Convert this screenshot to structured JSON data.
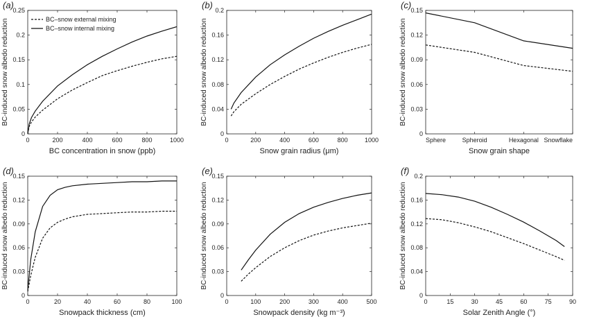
{
  "legend": {
    "external_label": "BC–snow external mixing",
    "internal_label": "BC–snow internal mixing",
    "placement": "top-left of panel (a)"
  },
  "chart_data": [
    {
      "id": "a",
      "panel_label": "(a)",
      "type": "line",
      "xlabel": "BC concentration in snow (ppb)",
      "ylabel": "BC-induced snow albedo reduction",
      "xlim": [
        0,
        1000
      ],
      "ylim": [
        0,
        0.25
      ],
      "xticks": [
        0,
        200,
        400,
        600,
        800,
        1000
      ],
      "xtick_labels": [
        "0",
        "200",
        "400",
        "600",
        "800",
        "1000"
      ],
      "yticks": [
        0,
        0.05,
        0.1,
        0.15,
        0.2,
        0.25
      ],
      "ytick_labels": [
        "0",
        "0.05",
        "0.1",
        "0.15",
        "0.2",
        "0.25"
      ],
      "series": [
        {
          "style": "dashed",
          "x": [
            0,
            10,
            25,
            50,
            100,
            200,
            300,
            400,
            500,
            600,
            700,
            800,
            900,
            1000
          ],
          "y": [
            0,
            0.015,
            0.024,
            0.034,
            0.048,
            0.071,
            0.089,
            0.104,
            0.118,
            0.128,
            0.137,
            0.145,
            0.152,
            0.157
          ]
        },
        {
          "style": "solid",
          "x": [
            0,
            10,
            25,
            50,
            100,
            200,
            300,
            400,
            500,
            600,
            700,
            800,
            900,
            1000
          ],
          "y": [
            0,
            0.02,
            0.033,
            0.046,
            0.066,
            0.097,
            0.12,
            0.14,
            0.157,
            0.172,
            0.186,
            0.198,
            0.208,
            0.217
          ]
        }
      ]
    },
    {
      "id": "b",
      "panel_label": "(b)",
      "type": "line",
      "xlabel": "Snow grain radius (μm)",
      "ylabel": "BC-induced snow albedo reduction",
      "xlim": [
        0,
        1000
      ],
      "ylim": [
        0,
        0.2
      ],
      "xticks": [
        0,
        200,
        400,
        600,
        800,
        1000
      ],
      "xtick_labels": [
        "0",
        "200",
        "400",
        "600",
        "800",
        "1000"
      ],
      "yticks": [
        0,
        0.04,
        0.08,
        0.12,
        0.16,
        0.2
      ],
      "ytick_labels": [
        "0",
        "0.04",
        "0.08",
        "0.12",
        "0.16",
        "0.2"
      ],
      "series": [
        {
          "style": "dashed",
          "x": [
            30,
            50,
            100,
            200,
            300,
            400,
            500,
            600,
            700,
            800,
            900,
            1000
          ],
          "y": [
            0.029,
            0.036,
            0.048,
            0.065,
            0.08,
            0.093,
            0.105,
            0.115,
            0.124,
            0.132,
            0.139,
            0.145
          ]
        },
        {
          "style": "solid",
          "x": [
            30,
            50,
            100,
            200,
            300,
            400,
            500,
            600,
            700,
            800,
            900,
            1000
          ],
          "y": [
            0.04,
            0.05,
            0.067,
            0.092,
            0.112,
            0.128,
            0.142,
            0.155,
            0.166,
            0.176,
            0.185,
            0.194
          ]
        }
      ]
    },
    {
      "id": "c",
      "panel_label": "(c)",
      "type": "line",
      "xlabel": "Snow grain shape",
      "ylabel": "BC-induced snow albedo reduction",
      "xlim": [
        0,
        3
      ],
      "ylim": [
        0,
        0.15
      ],
      "categories": [
        "Sphere",
        "Spheroid",
        "Hexagonal",
        "Snowflake"
      ],
      "xticks": [
        0,
        1,
        2,
        3
      ],
      "xtick_labels": [
        "Sphere",
        "Spheroid",
        "Hexagonal",
        "Snowflake"
      ],
      "yticks": [
        0,
        0.03,
        0.06,
        0.09,
        0.12,
        0.15
      ],
      "ytick_labels": [
        "0",
        "0.03",
        "0.06",
        "0.09",
        "0.12",
        "0.15"
      ],
      "series": [
        {
          "style": "dashed",
          "x": [
            0,
            1,
            2,
            3
          ],
          "y": [
            0.108,
            0.099,
            0.083,
            0.076
          ]
        },
        {
          "style": "solid",
          "x": [
            0,
            1,
            2,
            3
          ],
          "y": [
            0.147,
            0.135,
            0.113,
            0.104
          ]
        }
      ]
    },
    {
      "id": "d",
      "panel_label": "(d)",
      "type": "line",
      "xlabel": "Snowpack thickness (cm)",
      "ylabel": "BC-induced snow albedo reduction",
      "xlim": [
        0,
        100
      ],
      "ylim": [
        0,
        0.15
      ],
      "xticks": [
        0,
        20,
        40,
        60,
        80,
        100
      ],
      "xtick_labels": [
        "0",
        "20",
        "40",
        "60",
        "80",
        "100"
      ],
      "yticks": [
        0,
        0.03,
        0.06,
        0.09,
        0.12,
        0.15
      ],
      "ytick_labels": [
        "0",
        "0.03",
        "0.06",
        "0.09",
        "0.12",
        "0.15"
      ],
      "series": [
        {
          "style": "dashed",
          "x": [
            0,
            2,
            5,
            10,
            15,
            20,
            25,
            30,
            40,
            50,
            60,
            70,
            80,
            90,
            100
          ],
          "y": [
            0.005,
            0.025,
            0.048,
            0.072,
            0.085,
            0.092,
            0.096,
            0.099,
            0.102,
            0.103,
            0.104,
            0.105,
            0.105,
            0.106,
            0.106
          ]
        },
        {
          "style": "solid",
          "x": [
            0,
            2,
            5,
            10,
            15,
            20,
            25,
            30,
            40,
            50,
            60,
            70,
            80,
            90,
            100
          ],
          "y": [
            0.007,
            0.045,
            0.08,
            0.112,
            0.126,
            0.133,
            0.136,
            0.138,
            0.14,
            0.141,
            0.142,
            0.143,
            0.143,
            0.144,
            0.144
          ]
        }
      ]
    },
    {
      "id": "e",
      "panel_label": "(e)",
      "type": "line",
      "xlabel": "Snowpack density (kg m⁻³)",
      "ylabel": "BC-induced snow albedo reduction",
      "xlim": [
        0,
        500
      ],
      "ylim": [
        0,
        0.15
      ],
      "xticks": [
        0,
        100,
        200,
        300,
        400,
        500
      ],
      "xtick_labels": [
        "0",
        "100",
        "200",
        "300",
        "400",
        "500"
      ],
      "yticks": [
        0,
        0.03,
        0.06,
        0.09,
        0.12,
        0.15
      ],
      "ytick_labels": [
        "0",
        "0.03",
        "0.06",
        "0.09",
        "0.12",
        "0.15"
      ],
      "series": [
        {
          "style": "dashed",
          "x": [
            50,
            75,
            100,
            150,
            200,
            250,
            300,
            350,
            400,
            450,
            500
          ],
          "y": [
            0.018,
            0.027,
            0.035,
            0.049,
            0.06,
            0.069,
            0.076,
            0.081,
            0.085,
            0.088,
            0.091
          ]
        },
        {
          "style": "solid",
          "x": [
            50,
            75,
            100,
            150,
            200,
            250,
            300,
            350,
            400,
            450,
            500
          ],
          "y": [
            0.032,
            0.045,
            0.057,
            0.077,
            0.092,
            0.103,
            0.111,
            0.117,
            0.122,
            0.126,
            0.129
          ]
        }
      ]
    },
    {
      "id": "f",
      "panel_label": "(f)",
      "type": "line",
      "xlabel": "Solar Zenith Angle (°)",
      "ylabel": "BC-induced snow albedo reduction",
      "xlim": [
        0,
        90
      ],
      "ylim": [
        0,
        0.2
      ],
      "xticks": [
        0,
        15,
        30,
        45,
        60,
        75,
        90
      ],
      "xtick_labels": [
        "0",
        "15",
        "30",
        "45",
        "60",
        "75",
        "90"
      ],
      "yticks": [
        0,
        0.04,
        0.08,
        0.12,
        0.16,
        0.2
      ],
      "ytick_labels": [
        "0",
        "0.04",
        "0.08",
        "0.12",
        "0.16",
        "0.2"
      ],
      "series": [
        {
          "style": "dashed",
          "x": [
            0,
            10,
            20,
            30,
            40,
            50,
            60,
            70,
            80,
            85
          ],
          "y": [
            0.129,
            0.127,
            0.122,
            0.115,
            0.107,
            0.097,
            0.087,
            0.076,
            0.065,
            0.059
          ]
        },
        {
          "style": "solid",
          "x": [
            0,
            10,
            20,
            30,
            40,
            50,
            60,
            70,
            80,
            85
          ],
          "y": [
            0.171,
            0.169,
            0.165,
            0.158,
            0.148,
            0.136,
            0.123,
            0.108,
            0.092,
            0.082
          ]
        }
      ]
    }
  ]
}
